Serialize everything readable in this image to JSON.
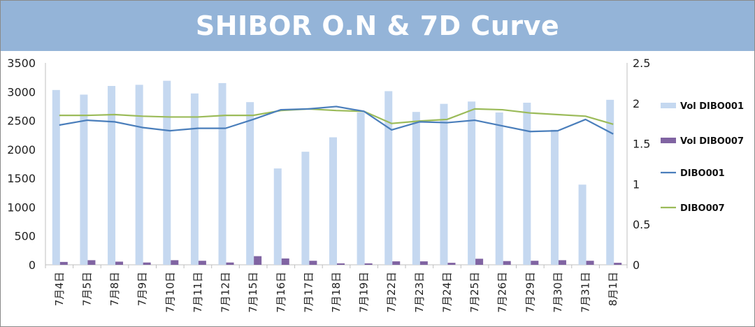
{
  "title": "SHIBOR O.N & 7D Curve",
  "colors": {
    "title_bar": "#94b4d8",
    "vol_dibo001": "#c5d8f0",
    "vol_dibo007": "#8064a2",
    "dibo001": "#4a7ebb",
    "dibo007": "#9bbb59"
  },
  "chart_data": {
    "type": "bar",
    "title": "SHIBOR O.N & 7D Curve",
    "categories": [
      "7月4日",
      "7月5日",
      "7月8日",
      "7月9日",
      "7月10日",
      "7月11日",
      "7月12日",
      "7月15日",
      "7月16日",
      "7月17日",
      "7月18日",
      "7月19日",
      "7月22日",
      "7月23日",
      "7月24日",
      "7月25日",
      "7月26日",
      "7月29日",
      "7月30日",
      "7月31日",
      "8月1日"
    ],
    "y_left": {
      "ticks": [
        "0",
        "500",
        "1000",
        "1500",
        "2000",
        "2500",
        "3000",
        "3500"
      ],
      "ylim": [
        0,
        3500
      ]
    },
    "y_right": {
      "ticks": [
        "0",
        "0.5",
        "1",
        "1.5",
        "2",
        "2.5"
      ],
      "ylim": [
        0,
        2.5
      ]
    },
    "grid": false,
    "legend_position": "right",
    "series": [
      {
        "name": "Vol DIBO001",
        "type": "bar",
        "axis": "left",
        "values": [
          3030,
          2950,
          3100,
          3120,
          3190,
          2970,
          3150,
          2820,
          1670,
          1960,
          2210,
          2640,
          3010,
          2650,
          2790,
          2830,
          2640,
          2810,
          2340,
          1390,
          2860
        ]
      },
      {
        "name": "Vol DIBO007",
        "type": "bar",
        "axis": "left",
        "values": [
          50,
          80,
          55,
          40,
          80,
          70,
          40,
          150,
          110,
          70,
          25,
          25,
          60,
          60,
          35,
          105,
          65,
          70,
          80,
          70,
          35
        ]
      },
      {
        "name": "DIBO001",
        "type": "line",
        "axis": "right",
        "values": [
          1.73,
          1.79,
          1.77,
          1.7,
          1.66,
          1.69,
          1.69,
          1.8,
          1.92,
          1.93,
          1.96,
          1.9,
          1.67,
          1.77,
          1.76,
          1.79,
          1.72,
          1.65,
          1.66,
          1.8,
          1.62
        ]
      },
      {
        "name": "DIBO007",
        "type": "line",
        "axis": "right",
        "values": [
          1.85,
          1.85,
          1.86,
          1.84,
          1.83,
          1.83,
          1.85,
          1.85,
          1.91,
          1.93,
          1.91,
          1.9,
          1.75,
          1.78,
          1.8,
          1.93,
          1.92,
          1.88,
          1.86,
          1.84,
          1.74
        ]
      }
    ]
  }
}
